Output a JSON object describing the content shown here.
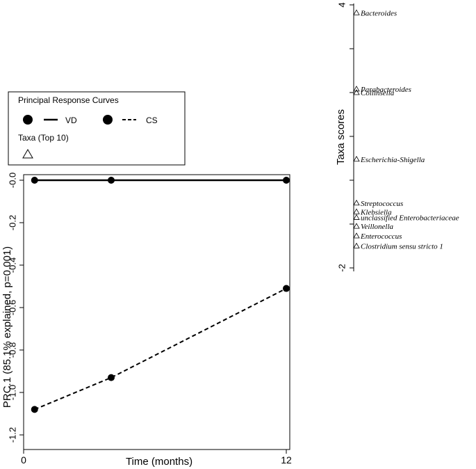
{
  "chart_data": {
    "type": "line",
    "xlabel": "Time (months)",
    "ylabel": "PRC.1 (85.1% explained, p=0.001)",
    "xlim": [
      -0.2,
      12.2
    ],
    "ylim": [
      -1.25,
      0.03
    ],
    "x_tick_labels": [
      {
        "value": 0,
        "label": "0"
      },
      {
        "value": 12,
        "label": "12"
      }
    ],
    "y_tick_labels": [
      {
        "value": 0,
        "label": "-0.0"
      },
      {
        "value": -0.2,
        "label": "-0.2"
      },
      {
        "value": -0.4,
        "label": "-0.4"
      },
      {
        "value": -0.6,
        "label": "-0.6"
      },
      {
        "value": -0.8,
        "label": "-0.8"
      },
      {
        "value": -1.0,
        "label": "-1.0"
      },
      {
        "value": -1.2,
        "label": "-1.2"
      }
    ],
    "series": [
      {
        "name": "VD",
        "x": [
          0.5,
          4,
          12
        ],
        "y": [
          0.0,
          0.0,
          0.0
        ],
        "line_style": "solid"
      },
      {
        "name": "CS",
        "x": [
          0.5,
          4,
          12
        ],
        "y": [
          -1.08,
          -0.93,
          -0.51
        ],
        "line_style": "dashed"
      }
    ],
    "legend": {
      "title": "Principal Response Curves",
      "entries": [
        "VD",
        "CS"
      ],
      "taxa_label": "Taxa (Top 10)",
      "placement": "top-left"
    },
    "taxa_axis": {
      "label": "Taxa scores",
      "ylim": [
        -2.1,
        4.1
      ],
      "tick_labels": [
        {
          "value": 4,
          "label": "4"
        },
        {
          "value": -2,
          "label": "-2"
        }
      ],
      "taxa": [
        {
          "name": "Bacteroides",
          "score": 3.82
        },
        {
          "name": "Parabacteroides",
          "score": 2.08
        },
        {
          "name": "Collinsella",
          "score": 2.0
        },
        {
          "name": "Escherichia-Shigella",
          "score": 0.48
        },
        {
          "name": "Streptococcus",
          "score": -0.52
        },
        {
          "name": "Klebsiella",
          "score": -0.72
        },
        {
          "name": "unclassified Enterobacteriaceae",
          "score": -0.85
        },
        {
          "name": "Veillonella",
          "score": -1.05
        },
        {
          "name": "Enterococcus",
          "score": -1.27
        },
        {
          "name": "Clostridium sensu stricto 1",
          "score": -1.5
        }
      ]
    }
  }
}
